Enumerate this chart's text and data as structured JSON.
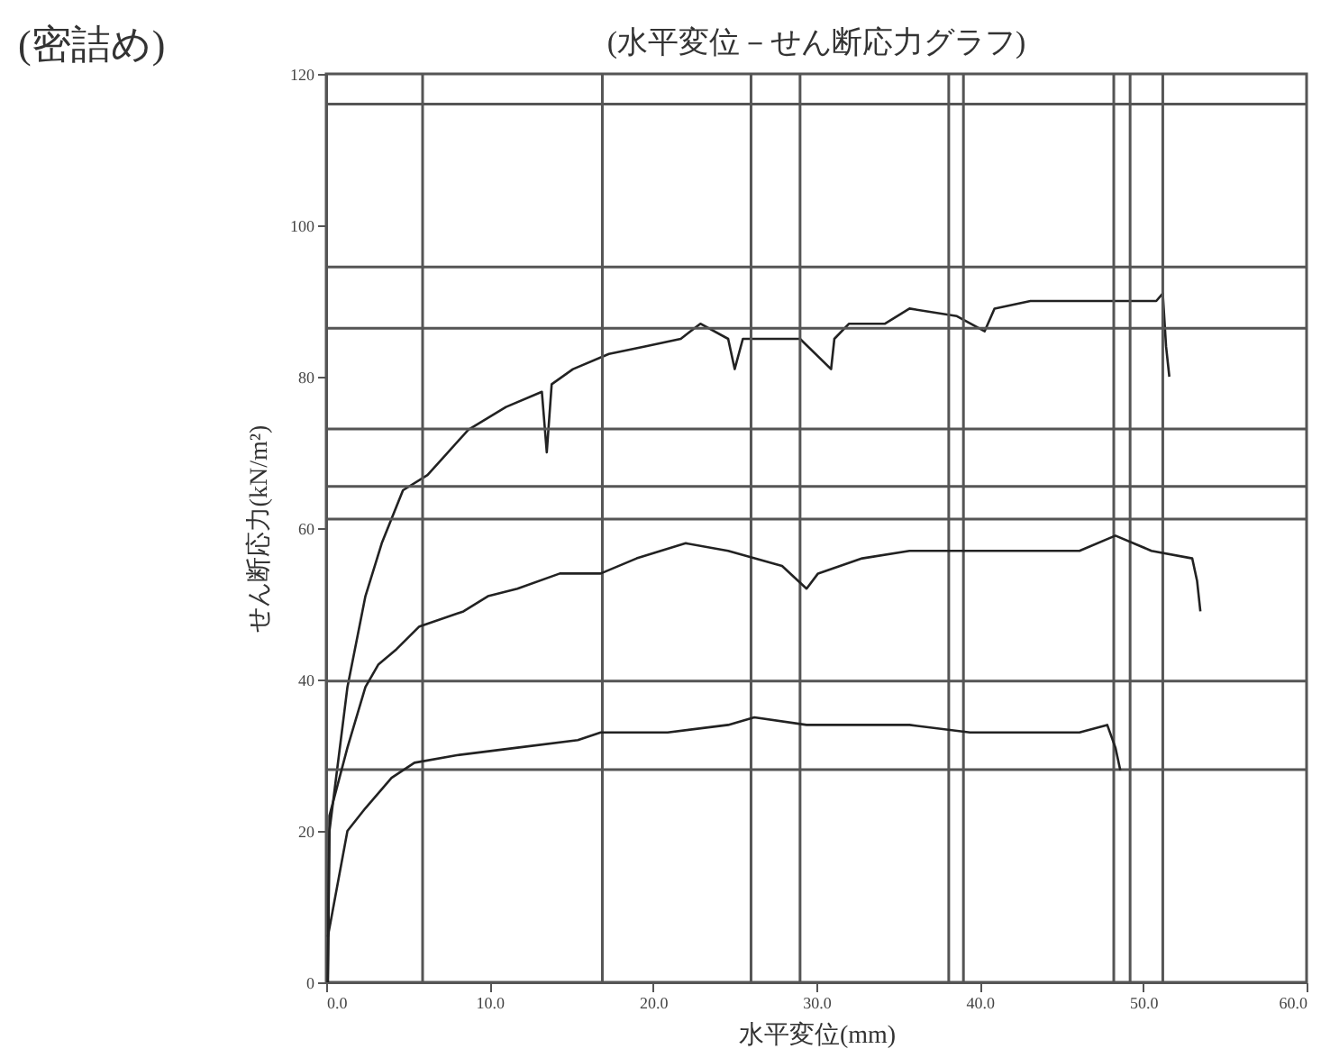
{
  "chart_data": {
    "type": "line",
    "title": "(水平変位－せん断応力グラフ)",
    "xlabel": "水平変位(mm)",
    "ylabel": "せん断応力(kN/m²)",
    "annotations": [
      "(密詰め)"
    ],
    "xlim": [
      0,
      60
    ],
    "xticks": [
      {
        "value": 0,
        "label": "0.0"
      },
      {
        "value": 10,
        "label": "10.0"
      },
      {
        "value": 20,
        "label": "20.0"
      },
      {
        "value": 30,
        "label": "30.0"
      },
      {
        "value": 40,
        "label": "40.0"
      },
      {
        "value": 50,
        "label": "50.0"
      },
      {
        "value": 60,
        "label": "60.0"
      }
    ],
    "ylim": [
      0,
      120
    ],
    "yticks": [
      0,
      20,
      40,
      60,
      80,
      100,
      120
    ],
    "grid": false,
    "line_style": "solid",
    "series": [
      {
        "color": "#222222",
        "x": [
          0.1,
          0.2,
          1.3,
          2.4,
          3.4,
          4.7,
          6.2,
          8.7,
          11.0,
          13.2,
          13.5,
          13.8,
          15.1,
          17.3,
          19.5,
          21.7,
          22.9,
          24.6,
          25.0,
          25.5,
          26.8,
          29.0,
          30.9,
          31.1,
          32.0,
          34.2,
          35.7,
          38.6,
          40.3,
          40.9,
          43.1,
          46.7,
          50.8,
          51.2,
          51.4,
          51.6
        ],
        "values": [
          0,
          20,
          39,
          51,
          58,
          65,
          67,
          73,
          76,
          78,
          70,
          79,
          81,
          83,
          84,
          85,
          87,
          85,
          81,
          85,
          85,
          85,
          81,
          85,
          87,
          87,
          89,
          88,
          86,
          89,
          90,
          90,
          90,
          91,
          84,
          80
        ]
      },
      {
        "color": "#222222",
        "x": [
          0.1,
          0.2,
          1.3,
          2.4,
          3.2,
          4.3,
          5.7,
          8.4,
          9.9,
          11.7,
          14.3,
          16.8,
          19.0,
          22.0,
          24.6,
          27.9,
          29.4,
          30.1,
          32.8,
          35.7,
          39.4,
          43.1,
          46.1,
          48.3,
          50.5,
          53.0,
          53.3,
          53.5
        ],
        "values": [
          0,
          22,
          31,
          39,
          42,
          44,
          47,
          49,
          51,
          52,
          54,
          54,
          56,
          58,
          57,
          55,
          52,
          54,
          56,
          57,
          57,
          57,
          57,
          59,
          57,
          56,
          53,
          49
        ]
      },
      {
        "color": "#222222",
        "x": [
          0.1,
          1.3,
          2.4,
          4.0,
          5.4,
          8.0,
          11.7,
          15.4,
          16.8,
          20.9,
          24.6,
          26.2,
          29.4,
          30.6,
          35.7,
          39.4,
          43.1,
          46.1,
          47.8,
          48.3,
          48.6
        ],
        "values": [
          6,
          20,
          23,
          27,
          29,
          30,
          31,
          32,
          33,
          33,
          34,
          35,
          34,
          34,
          34,
          33,
          33,
          33,
          34,
          31,
          28
        ]
      }
    ],
    "ref_lines": [
      {
        "axis": "x",
        "value": 5.9,
        "color": "#555555"
      },
      {
        "axis": "x",
        "value": 16.9,
        "color": "#555555"
      },
      {
        "axis": "x",
        "value": 26.0,
        "color": "#555555"
      },
      {
        "axis": "x",
        "value": 29.0,
        "color": "#555555"
      },
      {
        "axis": "x",
        "value": 38.1,
        "color": "#555555"
      },
      {
        "axis": "x",
        "value": 39.0,
        "color": "#555555"
      },
      {
        "axis": "x",
        "value": 48.2,
        "color": "#555555"
      },
      {
        "axis": "x",
        "value": 49.2,
        "color": "#555555"
      },
      {
        "axis": "x",
        "value": 51.2,
        "color": "#555555"
      },
      {
        "axis": "y",
        "value": 116,
        "color": "#555555"
      },
      {
        "axis": "y",
        "value": 94.5,
        "color": "#555555"
      },
      {
        "axis": "y",
        "value": 86.4,
        "color": "#555555"
      },
      {
        "axis": "y",
        "value": 73.1,
        "color": "#555555"
      },
      {
        "axis": "y",
        "value": 65.5,
        "color": "#555555"
      },
      {
        "axis": "y",
        "value": 61.2,
        "color": "#555555"
      },
      {
        "axis": "y",
        "value": 39.8,
        "color": "#555555"
      },
      {
        "axis": "y",
        "value": 28.1,
        "color": "#555555"
      }
    ]
  }
}
